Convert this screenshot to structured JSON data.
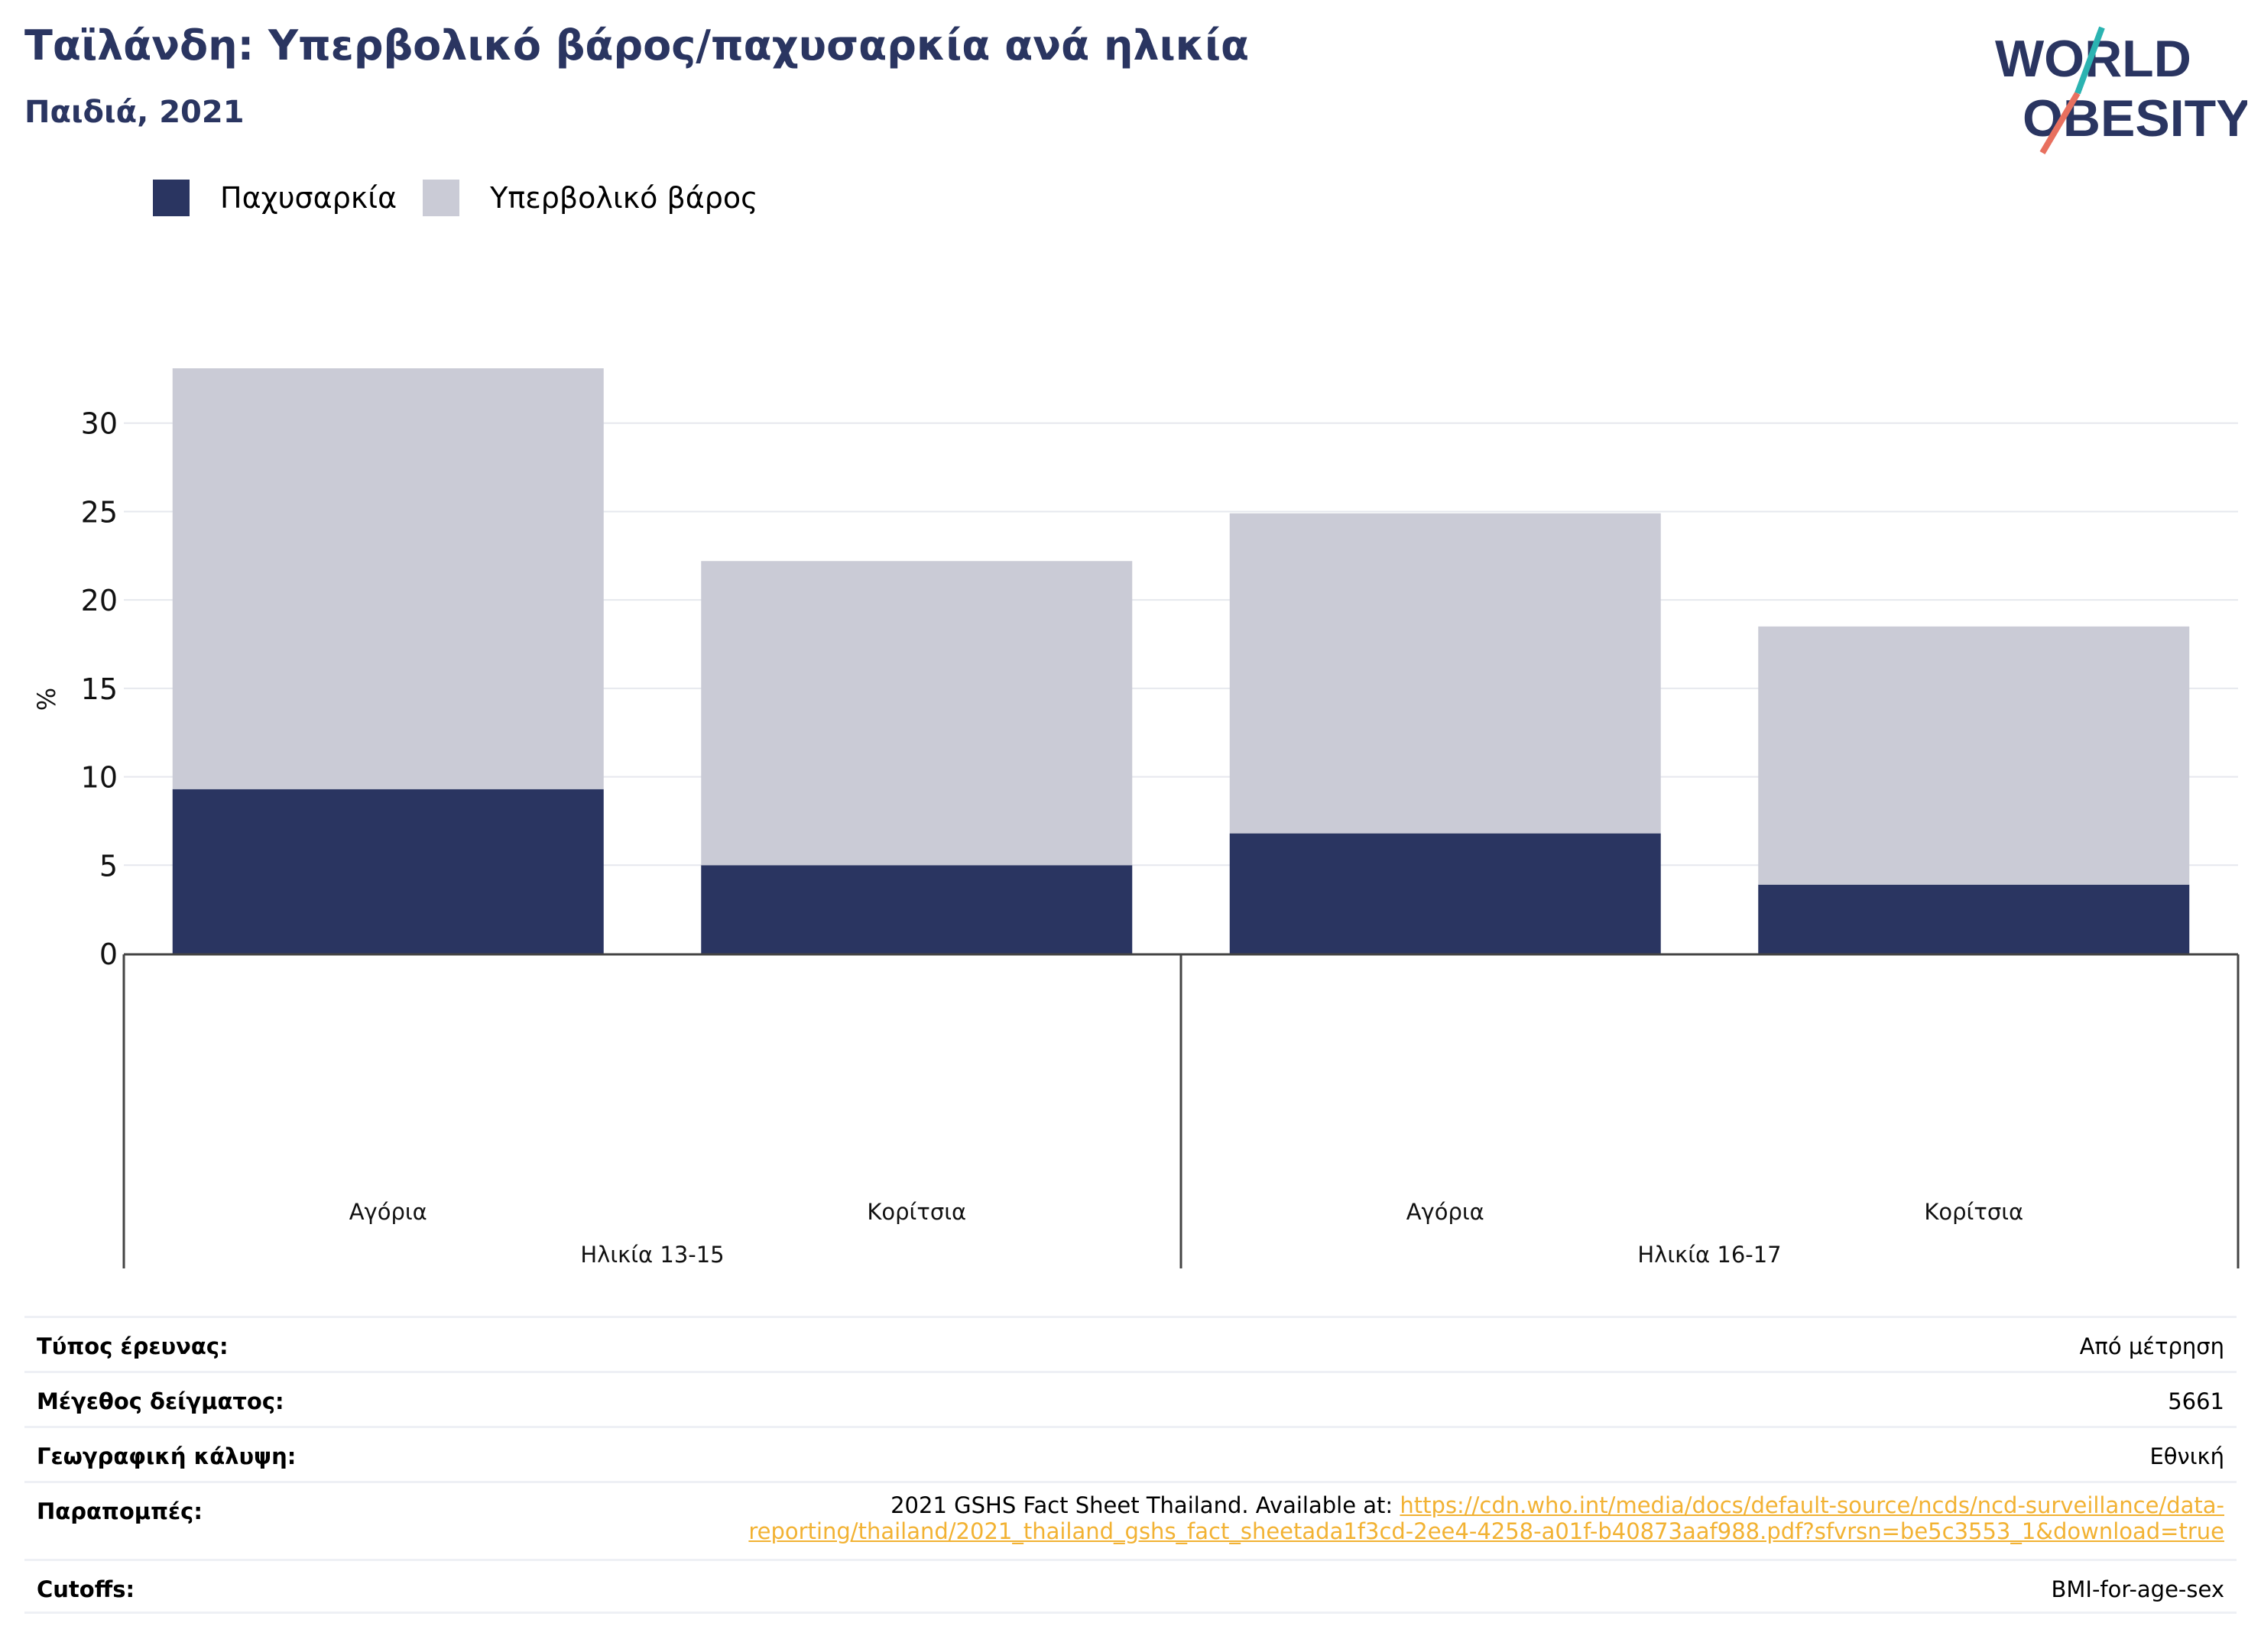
{
  "header": {
    "title": "Ταϊλάνδη: Υπερβολικό βάρος/παχυσαρκία ανά ηλικία",
    "subtitle": "Παιδιά, 2021"
  },
  "logo": {
    "line1": "WORLD",
    "line2": "OBESITY",
    "colors": {
      "navy": "#2a3561",
      "teal": "#2bb3b1",
      "coral": "#e8705f"
    }
  },
  "legend": [
    {
      "label": "Παχυσαρκία",
      "color": "#2a3561"
    },
    {
      "label": "Υπερβολικό βάρος",
      "color": "#cacbd6"
    }
  ],
  "chart_data": {
    "type": "bar",
    "stacked": true,
    "categories": [
      "Αγόρια",
      "Κορίτσια",
      "Αγόρια",
      "Κορίτσια"
    ],
    "groups": [
      {
        "label": "Ηλικία 13-15",
        "categories": [
          "Αγόρια",
          "Κορίτσια"
        ]
      },
      {
        "label": "Ηλικία 16-17",
        "categories": [
          "Αγόρια",
          "Κορίτσια"
        ]
      }
    ],
    "series": [
      {
        "name": "Παχυσαρκία",
        "color": "#2a3561",
        "values": [
          9.3,
          5.0,
          6.8,
          3.9
        ]
      },
      {
        "name": "Υπερβολικό βάρος",
        "color": "#cacbd6",
        "values": [
          23.8,
          17.2,
          18.1,
          14.6
        ]
      }
    ],
    "ylabel": "%",
    "ylim": [
      0,
      33.1
    ],
    "yticks": [
      0,
      5,
      10,
      15,
      20,
      25,
      30
    ],
    "grid": true,
    "legend_position": "top-left"
  },
  "meta": {
    "survey_type": {
      "label": "Τύπος έρευνας:",
      "value": "Από μέτρηση"
    },
    "sample_size": {
      "label": "Μέγεθος δείγματος:",
      "value": "5661"
    },
    "coverage": {
      "label": "Γεωγραφική κάλυψη:",
      "value": "Εθνική"
    },
    "references": {
      "label": "Παραπομπές:",
      "text": "2021 GSHS Fact Sheet Thailand. Available at: ",
      "link_part1": "https://cdn.who.int/media/docs/default-source/ncds/ncd-surveillance/data-",
      "link_part2": "reporting/thailand/2021_thailand_gshs_fact_sheetada1f3cd-2ee4-4258-a01f-b40873aaf988.pdf?sfvrsn=be5c3553_1&download=true"
    },
    "cutoffs": {
      "label": "Cutoffs:",
      "value": "BMI-for-age-sex"
    }
  }
}
